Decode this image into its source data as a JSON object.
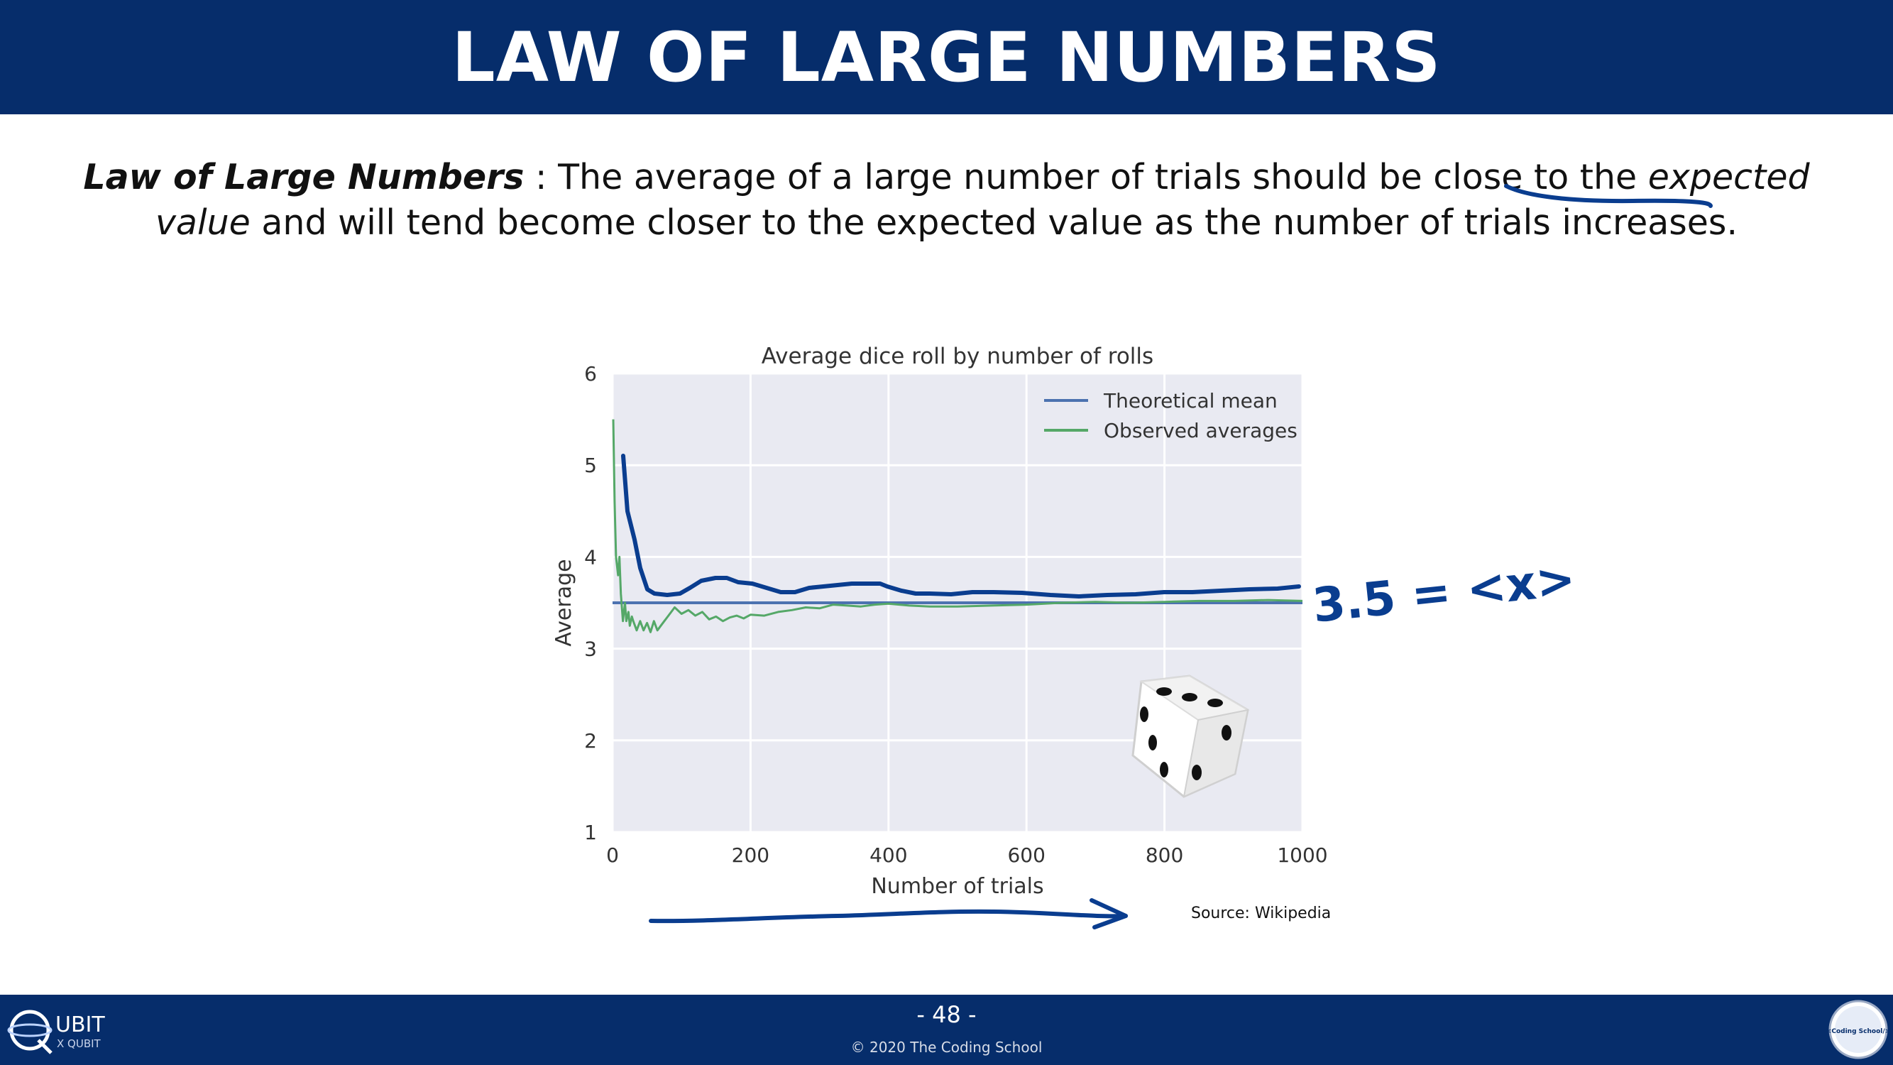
{
  "slide": {
    "title": "LAW OF LARGE NUMBERS",
    "definition_term": "Law of Large Numbers",
    "definition_part1": " : The average of a large number of trials should be close to the ",
    "definition_ev": "expected value",
    "definition_part2": " and will tend become closer to the expected value as the number of trials increases.",
    "source": "Source: Wikipedia",
    "annotation": "3.5 = <x>",
    "page_number": "- 48 -",
    "copyright": "© 2020 The Coding School",
    "logo_left_text": "UBIT",
    "logo_left_sub": "X QUBIT",
    "logo_right_text": "<Coding School/>"
  },
  "colors": {
    "brand": "#062d6b",
    "plot_bg": "#e9eaf2",
    "theoretical": "#4c72b0",
    "observed": "#55a868",
    "ink": "#0a3d8f"
  },
  "icons": [
    "die-icon",
    "qubit-logo",
    "coding-school-logo"
  ],
  "chart_data": {
    "type": "line",
    "title": "Average dice roll by number of rolls",
    "xlabel": "Number of trials",
    "ylabel": "Average",
    "xlim": [
      0,
      1000
    ],
    "ylim": [
      1,
      6
    ],
    "xticks": [
      0,
      200,
      400,
      600,
      800,
      1000
    ],
    "yticks": [
      1,
      2,
      3,
      4,
      5,
      6
    ],
    "grid": true,
    "legend": "top-right",
    "series": [
      {
        "name": "Theoretical mean",
        "x": [
          0,
          1000
        ],
        "y": [
          3.5,
          3.5
        ]
      },
      {
        "name": "Observed averages",
        "x": [
          1,
          3,
          5,
          8,
          10,
          12,
          15,
          18,
          20,
          23,
          25,
          28,
          30,
          35,
          40,
          45,
          50,
          55,
          60,
          65,
          70,
          75,
          80,
          90,
          100,
          110,
          120,
          130,
          140,
          150,
          160,
          170,
          180,
          190,
          200,
          220,
          240,
          260,
          280,
          300,
          320,
          340,
          360,
          380,
          400,
          430,
          460,
          500,
          550,
          600,
          650,
          700,
          750,
          800,
          850,
          900,
          950,
          1000
        ],
        "y": [
          5.5,
          4.6,
          4.0,
          3.8,
          4.0,
          3.6,
          3.3,
          3.5,
          3.3,
          3.4,
          3.25,
          3.35,
          3.3,
          3.2,
          3.3,
          3.2,
          3.28,
          3.18,
          3.3,
          3.2,
          3.25,
          3.3,
          3.35,
          3.45,
          3.38,
          3.42,
          3.36,
          3.4,
          3.32,
          3.35,
          3.3,
          3.34,
          3.36,
          3.33,
          3.37,
          3.36,
          3.4,
          3.42,
          3.45,
          3.44,
          3.48,
          3.47,
          3.46,
          3.48,
          3.49,
          3.47,
          3.46,
          3.46,
          3.47,
          3.48,
          3.5,
          3.51,
          3.5,
          3.51,
          3.52,
          3.52,
          3.53,
          3.52
        ]
      }
    ]
  }
}
